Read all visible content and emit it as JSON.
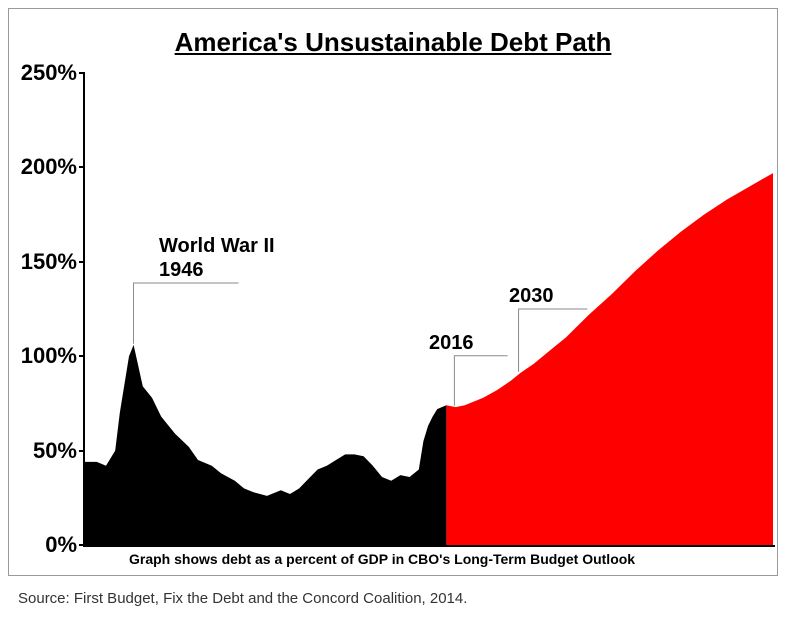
{
  "title": "America's Unsustainable Debt Path",
  "note": "Graph shows debt as a percent of GDP in CBO's Long-Term Budget Outlook",
  "source": "Source: First Budget, Fix the Debt and the Concord Coalition, 2014.",
  "chart": {
    "type": "area",
    "background_color": "#ffffff",
    "axis_color": "#000000",
    "ylim": [
      0,
      250
    ],
    "ytick_step": 50,
    "ytick_suffix": "%",
    "ytick_fontsize": 22,
    "title_fontsize": 26,
    "xrange": [
      1935,
      2085
    ],
    "series_historical": {
      "color": "#000000",
      "xend": 2014,
      "data": [
        [
          1935,
          44
        ],
        [
          1938,
          44
        ],
        [
          1940,
          42
        ],
        [
          1942,
          50
        ],
        [
          1943,
          70
        ],
        [
          1944,
          85
        ],
        [
          1945,
          100
        ],
        [
          1946,
          106
        ],
        [
          1947,
          95
        ],
        [
          1948,
          84
        ],
        [
          1950,
          78
        ],
        [
          1952,
          68
        ],
        [
          1955,
          59
        ],
        [
          1958,
          52
        ],
        [
          1960,
          45
        ],
        [
          1963,
          42
        ],
        [
          1965,
          38
        ],
        [
          1968,
          34
        ],
        [
          1970,
          30
        ],
        [
          1972,
          28
        ],
        [
          1975,
          26
        ],
        [
          1978,
          29
        ],
        [
          1980,
          27
        ],
        [
          1982,
          30
        ],
        [
          1984,
          35
        ],
        [
          1986,
          40
        ],
        [
          1988,
          42
        ],
        [
          1990,
          45
        ],
        [
          1992,
          48
        ],
        [
          1994,
          48
        ],
        [
          1996,
          47
        ],
        [
          1998,
          42
        ],
        [
          2000,
          36
        ],
        [
          2002,
          34
        ],
        [
          2004,
          37
        ],
        [
          2006,
          36
        ],
        [
          2008,
          40
        ],
        [
          2009,
          55
        ],
        [
          2010,
          63
        ],
        [
          2011,
          68
        ],
        [
          2012,
          72
        ],
        [
          2013,
          73
        ],
        [
          2014,
          74
        ]
      ]
    },
    "series_projection": {
      "color": "#ff0000",
      "xstart": 2014,
      "data": [
        [
          2014,
          74
        ],
        [
          2016,
          73
        ],
        [
          2018,
          74
        ],
        [
          2020,
          76
        ],
        [
          2022,
          78
        ],
        [
          2025,
          82
        ],
        [
          2028,
          87
        ],
        [
          2030,
          91
        ],
        [
          2033,
          96
        ],
        [
          2036,
          102
        ],
        [
          2040,
          110
        ],
        [
          2045,
          122
        ],
        [
          2050,
          133
        ],
        [
          2055,
          145
        ],
        [
          2060,
          156
        ],
        [
          2065,
          166
        ],
        [
          2070,
          175
        ],
        [
          2075,
          183
        ],
        [
          2080,
          190
        ],
        [
          2085,
          197
        ]
      ]
    },
    "annotations": [
      {
        "name": "ww2-annotation",
        "text_lines": [
          "World War II",
          "1946"
        ],
        "x_label": 150,
        "y_label": 225,
        "pointer_to_x": 1946,
        "pointer_to_y": 106
      },
      {
        "name": "year-2016-annotation",
        "text_lines": [
          "2016"
        ],
        "x_label": 420,
        "y_label": 322,
        "pointer_to_x": 2016,
        "pointer_to_y": 73
      },
      {
        "name": "year-2030-annotation",
        "text_lines": [
          "2030"
        ],
        "x_label": 500,
        "y_label": 275,
        "pointer_to_x": 2030,
        "pointer_to_y": 91
      }
    ],
    "callout_line_color": "#8a8a8a"
  }
}
